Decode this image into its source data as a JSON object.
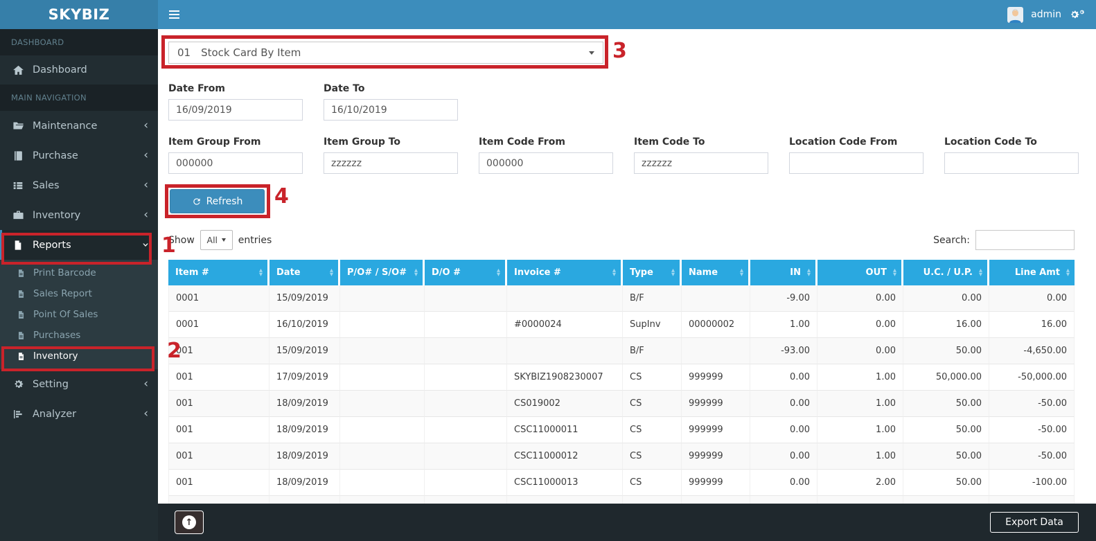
{
  "colors": {
    "navbar": "#3c8dbc",
    "logo_bg": "#367fa9",
    "sidebar_bg": "#222d32",
    "table_header": "#2aa8e0",
    "button": "#3c8dbc",
    "annotation": "#c9232a"
  },
  "brand": "SKYBIZ",
  "topbar": {
    "username": "admin"
  },
  "sidebar": {
    "section_dashboard": "DASHBOARD",
    "dashboard_label": "Dashboard",
    "section_main": "MAIN NAVIGATION",
    "items": [
      {
        "label": "Maintenance",
        "icon": "folder-icon",
        "chevron": "left"
      },
      {
        "label": "Purchase",
        "icon": "book-icon",
        "chevron": "left"
      },
      {
        "label": "Sales",
        "icon": "list-icon",
        "chevron": "left"
      },
      {
        "label": "Inventory",
        "icon": "briefcase-icon",
        "chevron": "left"
      },
      {
        "label": "Reports",
        "icon": "file-icon",
        "chevron": "down",
        "active": true,
        "submenu": [
          {
            "label": "Print Barcode",
            "icon": "file-text-icon"
          },
          {
            "label": "Sales Report",
            "icon": "file-text-icon"
          },
          {
            "label": "Point Of Sales",
            "icon": "file-text-icon"
          },
          {
            "label": "Purchases",
            "icon": "file-text-icon"
          },
          {
            "label": "Inventory",
            "icon": "file-text-icon",
            "active": true
          }
        ]
      },
      {
        "label": "Setting",
        "icon": "gears-icon",
        "chevron": "left"
      },
      {
        "label": "Analyzer",
        "icon": "chart-icon",
        "chevron": "left"
      }
    ]
  },
  "report_select": {
    "code": "01",
    "name": "Stock Card By Item"
  },
  "filters": {
    "refresh_label": "Refresh",
    "rows": [
      [
        {
          "label": "Date From",
          "value": "16/09/2019"
        },
        {
          "label": "Date To",
          "value": "16/10/2019"
        }
      ],
      [
        {
          "label": "Item Group From",
          "value": "000000"
        },
        {
          "label": "Item Group To",
          "value": "zzzzzz"
        },
        {
          "label": "Item Code From",
          "value": "000000"
        },
        {
          "label": "Item Code To",
          "value": "zzzzzz"
        },
        {
          "label": "Location Code From",
          "value": ""
        },
        {
          "label": "Location Code To",
          "value": ""
        }
      ]
    ]
  },
  "table": {
    "show_label": "Show",
    "page_size": "All",
    "entries_label": "entries",
    "search_label": "Search:",
    "search_value": "",
    "columns": [
      {
        "label": "Item #",
        "align": "left"
      },
      {
        "label": "Date",
        "align": "left"
      },
      {
        "label": "P/O# / S/O#",
        "align": "left"
      },
      {
        "label": "D/O #",
        "align": "left"
      },
      {
        "label": "Invoice #",
        "align": "left"
      },
      {
        "label": "Type",
        "align": "left"
      },
      {
        "label": "Name",
        "align": "left"
      },
      {
        "label": "IN",
        "align": "right"
      },
      {
        "label": "OUT",
        "align": "right"
      },
      {
        "label": "U.C. / U.P.",
        "align": "right"
      },
      {
        "label": "Line Amt",
        "align": "right"
      }
    ],
    "rows": [
      [
        "0001",
        "15/09/2019",
        "",
        "",
        "",
        "B/F",
        "",
        "-9.00",
        "0.00",
        "0.00",
        "0.00"
      ],
      [
        "0001",
        "16/10/2019",
        "",
        "",
        "#0000024",
        "SupInv",
        "00000002",
        "1.00",
        "0.00",
        "16.00",
        "16.00"
      ],
      [
        "001",
        "15/09/2019",
        "",
        "",
        "",
        "B/F",
        "",
        "-93.00",
        "0.00",
        "50.00",
        "-4,650.00"
      ],
      [
        "001",
        "17/09/2019",
        "",
        "",
        "SKYBIZ1908230007",
        "CS",
        "999999",
        "0.00",
        "1.00",
        "50,000.00",
        "-50,000.00"
      ],
      [
        "001",
        "18/09/2019",
        "",
        "",
        "CS019002",
        "CS",
        "999999",
        "0.00",
        "1.00",
        "50.00",
        "-50.00"
      ],
      [
        "001",
        "18/09/2019",
        "",
        "",
        "CSC11000011",
        "CS",
        "999999",
        "0.00",
        "1.00",
        "50.00",
        "-50.00"
      ],
      [
        "001",
        "18/09/2019",
        "",
        "",
        "CSC11000012",
        "CS",
        "999999",
        "0.00",
        "1.00",
        "50.00",
        "-50.00"
      ],
      [
        "001",
        "18/09/2019",
        "",
        "",
        "CSC11000013",
        "CS",
        "999999",
        "0.00",
        "2.00",
        "50.00",
        "-100.00"
      ],
      [
        "",
        "",
        "",
        "",
        "",
        "",
        "",
        "",
        "",
        "",
        ""
      ]
    ]
  },
  "footer": {
    "export_label": "Export Data"
  },
  "annotations": {
    "n1": "1",
    "n2": "2",
    "n3": "3",
    "n4": "4"
  }
}
